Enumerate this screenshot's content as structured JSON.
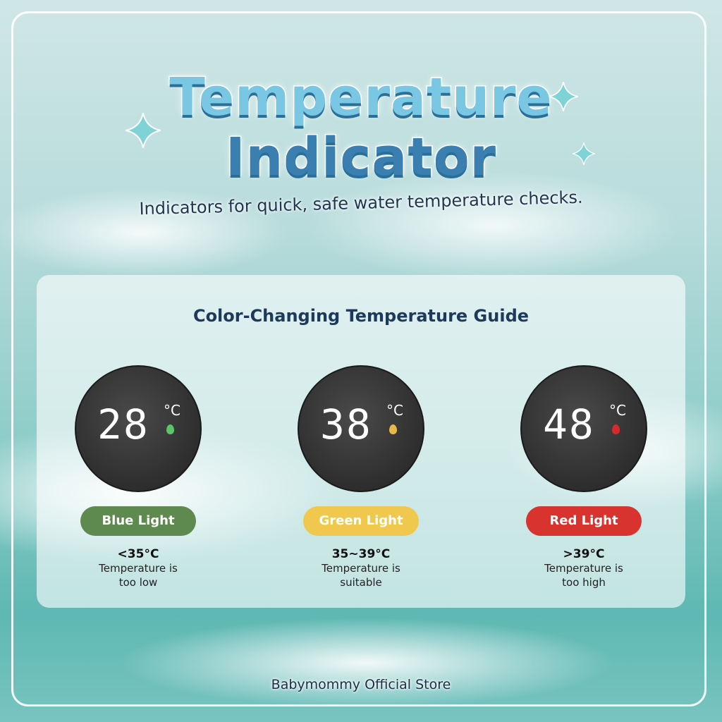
{
  "header": {
    "title": [
      "Temperature",
      "Indicator"
    ],
    "subtitle": "Indicators for quick, safe water temperature checks."
  },
  "guide": {
    "title": "Color-Changing Temperature Guide",
    "items": [
      {
        "display": "28",
        "unit": "°C",
        "label": "Blue Light",
        "range": "<35°C",
        "description": [
          "Temperature is",
          "too low"
        ]
      },
      {
        "display": "38",
        "unit": "°C",
        "label": "Green Light",
        "range": "35~39°C",
        "description": [
          "Temperature is",
          "suitable"
        ]
      },
      {
        "display": "48",
        "unit": "°C",
        "label": "Red Light",
        "range": ">39°C",
        "description": [
          "Temperature is",
          "too high"
        ]
      }
    ]
  },
  "footer": "Babymommy Official Store"
}
